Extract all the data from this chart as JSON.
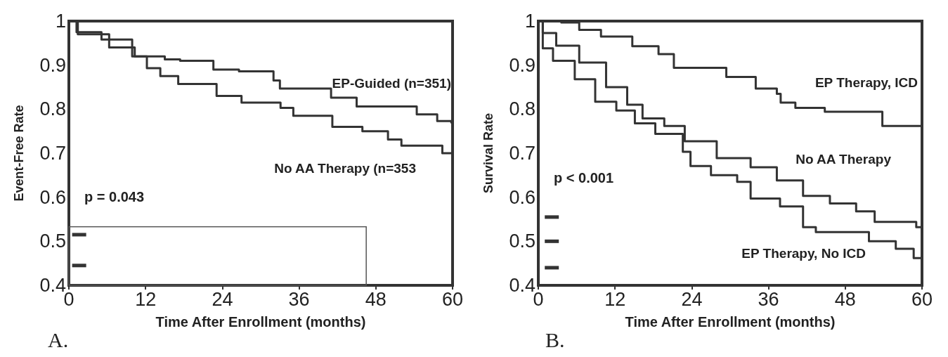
{
  "chart_data": [
    {
      "type": "step",
      "xlabel": "Time After Enrollment (months)",
      "ylabel": "Event-Free Rate",
      "annotations": [
        "p = 0.043",
        "A."
      ],
      "xlim": [
        0,
        60
      ],
      "xticks": [
        0,
        12,
        24,
        36,
        48,
        60
      ],
      "ylim": [
        0.4,
        1
      ],
      "yticks": [
        0.4,
        0.5,
        0.6,
        0.7,
        0.8,
        0.9,
        1
      ],
      "grid": false,
      "marker": "none",
      "line_style": "solid",
      "series": [
        {
          "name": "EP-Guided (n=351)",
          "color": "#333333",
          "x": [
            0,
            0.6,
            1.4,
            6.3,
            10.3,
            15,
            17.4,
            22.6,
            26.6,
            32,
            33,
            35.5,
            41,
            45,
            51,
            54.4,
            57.6,
            59.8,
            60
          ],
          "values": [
            1,
            1,
            0.97,
            0.94,
            0.92,
            0.913,
            0.91,
            0.89,
            0.886,
            0.865,
            0.847,
            0.847,
            0.826,
            0.806,
            0.806,
            0.788,
            0.773,
            0.77,
            0.76
          ]
        },
        {
          "name": "No AA Therapy (n=353",
          "color": "#333333",
          "x": [
            0,
            0.6,
            1.2,
            5.1,
            9.9,
            12.2,
            14.3,
            17.1,
            23.1,
            27,
            33.1,
            35.1,
            41.2,
            45.9,
            49.9,
            52,
            56.4,
            58.4,
            60
          ],
          "values": [
            1,
            1,
            0.975,
            0.958,
            0.92,
            0.893,
            0.875,
            0.857,
            0.83,
            0.815,
            0.803,
            0.785,
            0.76,
            0.75,
            0.731,
            0.717,
            0.717,
            0.7,
            0.675
          ]
        }
      ]
    },
    {
      "type": "step",
      "xlabel": "Time After Enrollment (months)",
      "ylabel": "Survival Rate",
      "annotations": [
        "p < 0.001",
        "B."
      ],
      "xlim": [
        0,
        60
      ],
      "xticks": [
        0,
        12,
        24,
        36,
        48,
        60
      ],
      "ylim": [
        0.4,
        1
      ],
      "yticks": [
        0.4,
        0.5,
        0.6,
        0.7,
        0.8,
        0.9,
        1
      ],
      "grid": false,
      "marker": "none",
      "line_style": "solid",
      "series": [
        {
          "name": "EP Therapy, ICD",
          "color": "#333333",
          "x": [
            0,
            3.6,
            6.4,
            9.8,
            14.7,
            18.8,
            21.2,
            26.7,
            29.4,
            34,
            37.3,
            37.9,
            40.2,
            44.8,
            52.6,
            53.8,
            60
          ],
          "values": [
            1,
            0.997,
            0.98,
            0.965,
            0.943,
            0.925,
            0.894,
            0.894,
            0.873,
            0.847,
            0.835,
            0.815,
            0.803,
            0.794,
            0.794,
            0.762,
            0.762
          ]
        },
        {
          "name": "No AA Therapy",
          "color": "#333333",
          "x": [
            0,
            0.7,
            2.8,
            6.4,
            10.6,
            13.9,
            16.3,
            19.7,
            22.9,
            27.9,
            33.2,
            37.3,
            41.4,
            45.6,
            49.7,
            52.6,
            56.7,
            59.1,
            60
          ],
          "values": [
            1,
            0.973,
            0.944,
            0.906,
            0.85,
            0.81,
            0.779,
            0.762,
            0.727,
            0.689,
            0.668,
            0.638,
            0.603,
            0.586,
            0.568,
            0.544,
            0.544,
            0.532,
            0.52
          ]
        },
        {
          "name": "EP Therapy, No ICD",
          "color": "#333333",
          "x": [
            0,
            0.7,
            2.3,
            5.7,
            8.9,
            12.2,
            15.1,
            18.3,
            22.6,
            23.8,
            27,
            31.1,
            33.2,
            37.8,
            41.4,
            43.4,
            47.6,
            51.7,
            55.9,
            58.7,
            60
          ],
          "values": [
            1,
            0.938,
            0.91,
            0.868,
            0.817,
            0.797,
            0.768,
            0.744,
            0.703,
            0.671,
            0.65,
            0.635,
            0.597,
            0.579,
            0.532,
            0.521,
            0.521,
            0.5,
            0.483,
            0.462,
            0.46
          ]
        }
      ]
    }
  ]
}
